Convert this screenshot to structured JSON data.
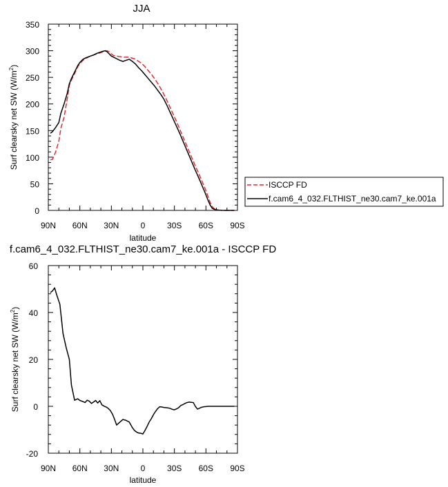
{
  "chart_data": [
    {
      "type": "line",
      "title": "JJA",
      "xlabel": "latitude",
      "ylabel": "Surf clearsky net SW (W/m",
      "ylabel_sup": "2",
      "ylabel_tail": ")",
      "xlim": [
        90,
        -90
      ],
      "ylim": [
        0,
        350
      ],
      "xticks": [
        90,
        60,
        30,
        0,
        -30,
        -60,
        -90
      ],
      "xtick_labels": [
        "90N",
        "60N",
        "30N",
        "0",
        "30S",
        "60S",
        "90S"
      ],
      "yticks": [
        0,
        50,
        100,
        150,
        200,
        250,
        300,
        350
      ],
      "ytick_labels": [
        "0",
        "50",
        "100",
        "150",
        "200",
        "250",
        "300",
        "350"
      ],
      "legend_position": "right, outside the plot",
      "series": [
        {
          "name": "ISCCP FD",
          "color": "#e8262c",
          "dash": "dashed",
          "x": [
            88,
            86,
            83,
            80,
            78,
            75,
            72,
            70,
            68,
            65,
            62,
            60,
            57,
            54,
            50,
            47,
            44,
            41,
            38,
            36,
            34,
            32,
            30,
            28,
            25,
            22,
            19,
            16,
            13,
            10,
            7,
            4,
            1,
            -2,
            -5,
            -8,
            -11,
            -14,
            -17,
            -20,
            -23,
            -26,
            -29,
            -32,
            -35,
            -38,
            -41,
            -44,
            -47,
            -50,
            -53,
            -56,
            -59,
            -62,
            -64,
            -66,
            -68,
            -70,
            -72,
            -75,
            -78,
            -81,
            -84,
            -87
          ],
          "y": [
            95,
            96,
            110,
            130,
            155,
            175,
            210,
            235,
            245,
            257,
            270,
            276,
            282,
            286,
            290,
            292,
            294,
            296,
            298,
            300,
            300,
            298,
            294,
            291,
            290,
            289,
            288,
            288,
            288,
            286,
            284,
            280,
            276,
            270,
            263,
            256,
            248,
            239,
            229,
            218,
            206,
            193,
            180,
            167,
            153,
            139,
            125,
            111,
            97,
            83,
            70,
            56,
            42,
            26,
            15,
            7,
            3,
            1.5,
            0.6,
            0.2,
            0,
            0,
            0,
            0
          ]
        },
        {
          "name": "f.cam6_4_032.FLTHIST_ne30.cam7_ke.001a",
          "color": "#000000",
          "dash": "solid",
          "x": [
            88,
            86,
            83,
            80,
            78,
            75,
            72,
            70,
            68,
            65,
            62,
            60,
            57,
            54,
            50,
            47,
            44,
            41,
            38,
            36,
            34,
            32,
            30,
            28,
            25,
            22,
            19,
            16,
            13,
            10,
            7,
            4,
            1,
            -2,
            -5,
            -8,
            -11,
            -14,
            -17,
            -20,
            -23,
            -26,
            -29,
            -32,
            -35,
            -38,
            -41,
            -44,
            -47,
            -50,
            -53,
            -56,
            -59,
            -62,
            -64,
            -66,
            -68,
            -70,
            -72,
            -75,
            -78,
            -81,
            -84,
            -87
          ],
          "y": [
            145,
            148,
            156,
            165,
            183,
            200,
            220,
            238,
            248,
            260,
            272,
            278,
            284,
            287,
            290,
            292,
            295,
            297,
            299,
            300,
            298,
            294,
            290,
            288,
            285,
            282,
            280,
            282,
            284,
            280,
            275,
            268,
            262,
            255,
            248,
            241,
            234,
            226,
            218,
            209,
            197,
            184,
            171,
            158,
            145,
            131,
            117,
            103,
            89,
            75,
            62,
            48,
            34,
            19,
            10,
            4,
            2,
            1,
            0.5,
            0.1,
            0,
            0,
            0,
            0
          ]
        }
      ]
    },
    {
      "type": "line",
      "title": "f.cam6_4_032.FLTHIST_ne30.cam7_ke.001a - ISCCP FD",
      "xlabel": "latitude",
      "ylabel": "Surf clearsky net SW (W/m",
      "ylabel_sup": "2",
      "ylabel_tail": ")",
      "xlim": [
        90,
        -90
      ],
      "ylim": [
        -20,
        60
      ],
      "xticks": [
        90,
        60,
        30,
        0,
        -30,
        -60,
        -90
      ],
      "xtick_labels": [
        "90N",
        "60N",
        "30N",
        "0",
        "30S",
        "60S",
        "90S"
      ],
      "yticks": [
        -20,
        0,
        20,
        40,
        60
      ],
      "ytick_labels": [
        "-20",
        "0",
        "20",
        "40",
        "60"
      ],
      "series": [
        {
          "color": "#000000",
          "dash": "solid",
          "x": [
            88,
            86,
            84,
            82,
            79,
            76,
            73,
            70,
            68,
            65,
            62,
            60,
            57,
            55,
            53,
            51,
            49,
            47,
            45,
            43,
            41,
            39,
            37,
            35,
            33,
            31,
            29,
            27,
            25,
            22,
            19,
            16,
            13,
            10,
            8,
            6,
            4,
            2,
            0,
            -2,
            -4,
            -6,
            -8,
            -10,
            -12,
            -14,
            -16,
            -18,
            -20,
            -22,
            -24,
            -26,
            -28,
            -30,
            -32,
            -34,
            -36,
            -38,
            -40,
            -42,
            -44,
            -46,
            -48,
            -50,
            -52,
            -54,
            -56,
            -58,
            -60,
            -62,
            -64,
            -66,
            -68,
            -70,
            -72,
            -75,
            -78,
            -81,
            -84,
            -87
          ],
          "y": [
            48.5,
            49.2,
            50.5,
            47.5,
            43.5,
            31,
            25,
            20,
            9,
            2.6,
            3.2,
            2.5,
            2.0,
            1.6,
            2.6,
            2.2,
            1.2,
            1.8,
            2.5,
            1.4,
            2.4,
            0.6,
            0.1,
            -0.3,
            -0.9,
            -1.8,
            -3.3,
            -5.5,
            -8.0,
            -6.8,
            -5.6,
            -6.0,
            -6.7,
            -9.1,
            -10.3,
            -11.0,
            -11.4,
            -11.5,
            -11.8,
            -10.3,
            -8.6,
            -6.7,
            -5.3,
            -3.6,
            -2.2,
            -1.0,
            -0.2,
            -0.3,
            -0.5,
            -0.6,
            -0.7,
            -0.9,
            -1.3,
            -1.5,
            -1.1,
            -0.6,
            0.3,
            0.7,
            1.2,
            1.6,
            1.8,
            1.7,
            1.6,
            -0.1,
            -1.2,
            -0.8,
            -0.4,
            -0.2,
            -0.1,
            0,
            0,
            0,
            0,
            0,
            0,
            0,
            0,
            0,
            0,
            0
          ]
        }
      ]
    }
  ]
}
